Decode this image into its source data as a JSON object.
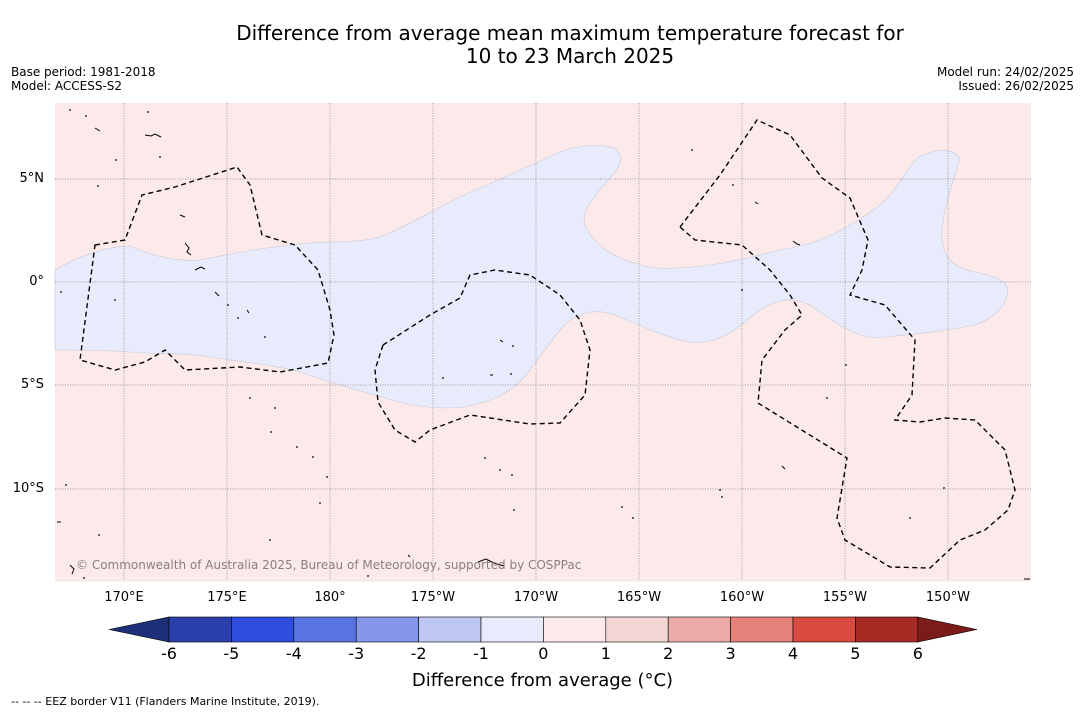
{
  "title": {
    "line1": "Difference from average mean maximum temperature forecast for",
    "line2": "10 to 23 March 2025"
  },
  "meta_left": {
    "base_period": "Base period: 1981-2018",
    "model": "Model: ACCESS-S2"
  },
  "meta_right": {
    "model_run": "Model run: 24/02/2025",
    "issued": "Issued: 26/02/2025"
  },
  "copyright": "© Commonwealth of Australia 2025, Bureau of Meteorology, supported by COSPPac",
  "lat_labels": [
    "5°N",
    "0°",
    "5°S",
    "10°S"
  ],
  "lon_labels": [
    "170°E",
    "175°E",
    "180°",
    "175°W",
    "170°W",
    "165°W",
    "160°W",
    "155°W",
    "150°W"
  ],
  "colorbar": {
    "label": "Difference from average (°C)",
    "ticks": [
      "-6",
      "-5",
      "-4",
      "-3",
      "-2",
      "-1",
      "0",
      "1",
      "2",
      "3",
      "4",
      "5",
      "6"
    ],
    "colors": [
      "#2a3eac",
      "#2f4ede",
      "#5874e2",
      "#8497e9",
      "#bec7f2",
      "#e8ebfb",
      "#fbeae9",
      "#f1d6d4",
      "#eaaaa6",
      "#e4827a",
      "#d94a40",
      "#a72a25"
    ],
    "under_color": "#1e2f7a",
    "over_color": "#7a1d1a"
  },
  "map_colors": {
    "warm_background": "#fbeae9",
    "cool_region": "#e8ebfb"
  },
  "footnote": "--  --  -- EEZ border V11 (Flanders Marine Institute, 2019)."
}
